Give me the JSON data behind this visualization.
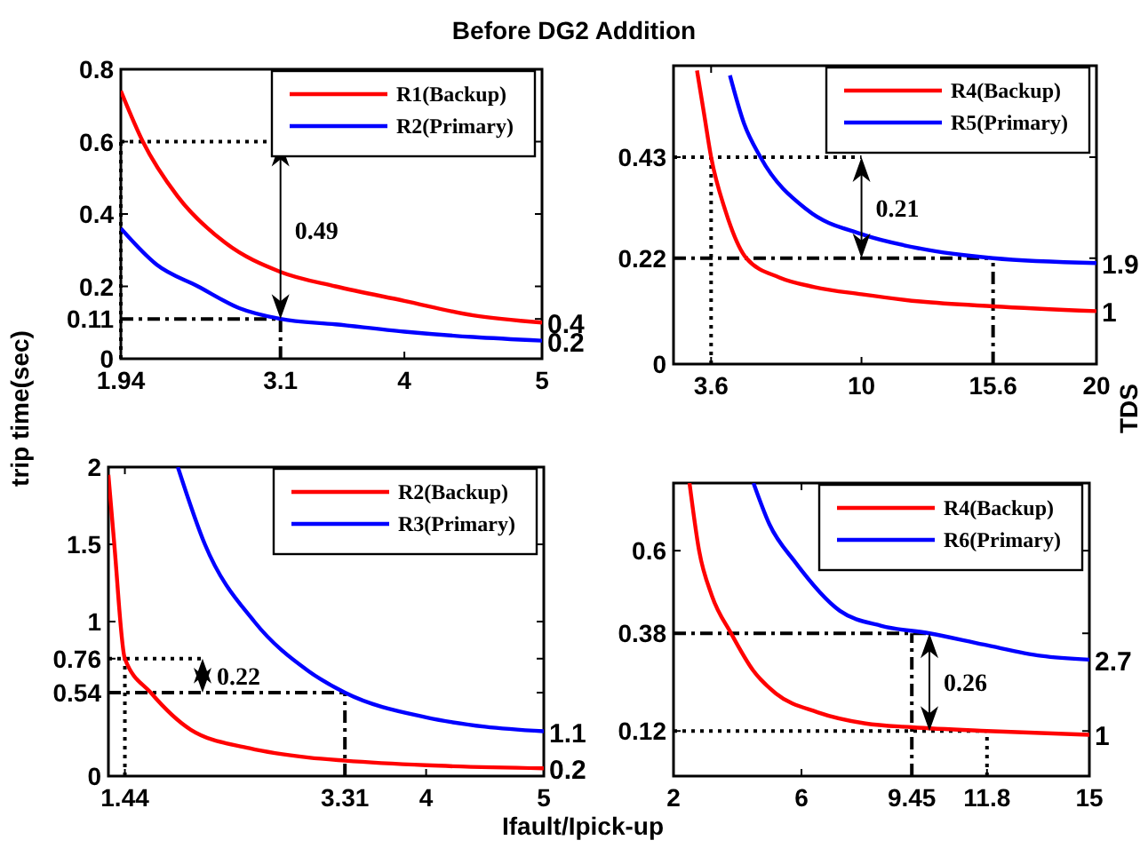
{
  "chart_data": [
    {
      "type": "line",
      "title": "Before DG2 Addition",
      "ylabel": "trip time(sec)",
      "xlim": [
        1.94,
        5
      ],
      "xticks": [
        1.94,
        3.1,
        4,
        5
      ],
      "ylim": [
        0,
        0.8
      ],
      "yticks": [
        0,
        0.11,
        0.2,
        0.4,
        0.6,
        0.8
      ],
      "legend": "top right",
      "grid": false,
      "series": [
        {
          "name": "R1(Backup)",
          "color": "#ff0000",
          "x": [
            1.94,
            2.1,
            2.35,
            2.7,
            3.1,
            3.5,
            4,
            4.5,
            5
          ],
          "values": [
            0.74,
            0.6,
            0.45,
            0.32,
            0.24,
            0.2,
            0.16,
            0.12,
            0.1
          ]
        },
        {
          "name": "R2(Primary)",
          "color": "#0000ff",
          "x": [
            1.94,
            2.2,
            2.5,
            2.8,
            3.1,
            3.5,
            4,
            4.5,
            5
          ],
          "values": [
            0.36,
            0.26,
            0.2,
            0.14,
            0.11,
            0.095,
            0.075,
            0.06,
            0.05
          ]
        }
      ],
      "ref_lines": [
        {
          "axis": "y",
          "value": 0.6,
          "line_style": "dotted"
        },
        {
          "axis": "x",
          "value": 1.94,
          "line_style": "dotted"
        },
        {
          "axis": "y",
          "value": 0.11,
          "line_style": "dashed"
        },
        {
          "axis": "x",
          "value": 3.1,
          "line_style": "dashed"
        }
      ],
      "annotations": [
        {
          "text": "0.49",
          "x": 3.1,
          "y": 0.11
        },
        {
          "text": "0.4",
          "x": 5,
          "y": 0.1
        },
        {
          "text": "0.2",
          "x": 5,
          "y": 0.05
        }
      ]
    },
    {
      "type": "line",
      "y2label": "TDS",
      "xlim": [
        2,
        20
      ],
      "xticks": [
        3.6,
        10,
        15.6,
        20
      ],
      "ylim": [
        0,
        0.62
      ],
      "yticks": [
        0,
        0.22,
        0.43
      ],
      "legend": "top right",
      "grid": false,
      "series": [
        {
          "name": "R4(Backup)",
          "color": "#ff0000",
          "x": [
            3.0,
            3.3,
            3.6,
            4.2,
            5.1,
            6.5,
            8,
            10,
            12.5,
            15.6,
            20
          ],
          "values": [
            0.61,
            0.52,
            0.43,
            0.32,
            0.22,
            0.18,
            0.16,
            0.145,
            0.13,
            0.12,
            0.11
          ]
        },
        {
          "name": "R5(Primary)",
          "color": "#0000ff",
          "x": [
            4.4,
            5,
            5.7,
            7.7,
            10,
            12.5,
            15.6,
            20
          ],
          "values": [
            0.6,
            0.5,
            0.43,
            0.32,
            0.27,
            0.24,
            0.22,
            0.21
          ]
        }
      ],
      "ref_lines": [
        {
          "axis": "y",
          "value": 0.43,
          "line_style": "dotted"
        },
        {
          "axis": "x",
          "value": 3.6,
          "line_style": "dotted"
        },
        {
          "axis": "y",
          "value": 0.22,
          "line_style": "dashed"
        },
        {
          "axis": "x",
          "value": 15.6,
          "line_style": "dashed"
        }
      ],
      "annotations": [
        {
          "text": "0.21",
          "x": 10,
          "y": 0.43
        },
        {
          "text": "1.9",
          "x": 20,
          "y": 0.21
        },
        {
          "text": "1",
          "x": 20,
          "y": 0.11
        }
      ]
    },
    {
      "type": "line",
      "xlabel": "Ifault/Ipick-up",
      "xlim": [
        1.3,
        5
      ],
      "xticks": [
        1.44,
        3.31,
        4,
        5
      ],
      "ylim": [
        0,
        2
      ],
      "yticks": [
        0,
        0.54,
        0.76,
        1,
        1.5,
        2
      ],
      "legend": "top right",
      "grid": false,
      "series": [
        {
          "name": "R2(Backup)",
          "color": "#ff0000",
          "x": [
            1.3,
            1.35,
            1.44,
            1.66,
            2.0,
            2.5,
            3,
            3.31,
            4,
            5
          ],
          "values": [
            1.95,
            1.5,
            0.76,
            0.54,
            0.3,
            0.18,
            0.12,
            0.1,
            0.07,
            0.05
          ]
        },
        {
          "name": "R3(Primary)",
          "color": "#0000ff",
          "x": [
            1.89,
            2.12,
            2.54,
            3.0,
            3.31,
            4,
            4.5,
            5
          ],
          "values": [
            2.0,
            1.5,
            1.0,
            0.68,
            0.54,
            0.38,
            0.32,
            0.29
          ]
        }
      ],
      "ref_lines": [
        {
          "axis": "y",
          "value": 0.76,
          "line_style": "dotted"
        },
        {
          "axis": "x",
          "value": 1.44,
          "line_style": "dotted"
        },
        {
          "axis": "y",
          "value": 0.54,
          "line_style": "dashed"
        },
        {
          "axis": "x",
          "value": 3.31,
          "line_style": "dashed"
        }
      ],
      "annotations": [
        {
          "text": "0.22",
          "x": 2.1,
          "y": 0.76
        },
        {
          "text": "1.1",
          "x": 5,
          "y": 0.29
        },
        {
          "text": "0.2",
          "x": 5,
          "y": 0.05
        }
      ]
    },
    {
      "type": "line",
      "xlim": [
        2,
        15
      ],
      "xticks": [
        2,
        6,
        9.45,
        11.8,
        15
      ],
      "ylim": [
        0,
        0.78
      ],
      "yticks": [
        0.12,
        0.38,
        0.6
      ],
      "legend": "top right",
      "grid": false,
      "series": [
        {
          "name": "R4(Backup)",
          "color": "#ff0000",
          "x": [
            2.5,
            2.8,
            3.2,
            3.8,
            4.5,
            5.2,
            6.5,
            8,
            9.45,
            11.8,
            15
          ],
          "values": [
            0.78,
            0.6,
            0.48,
            0.38,
            0.28,
            0.22,
            0.17,
            0.14,
            0.13,
            0.12,
            0.11
          ]
        },
        {
          "name": "R6(Primary)",
          "color": "#0000ff",
          "x": [
            4.5,
            5,
            5.8,
            7.2,
            8.5,
            10,
            11.7,
            13.5,
            15
          ],
          "values": [
            0.78,
            0.67,
            0.57,
            0.44,
            0.4,
            0.38,
            0.35,
            0.32,
            0.31
          ]
        }
      ],
      "ref_lines": [
        {
          "axis": "y",
          "value": 0.38,
          "line_style": "dashed"
        },
        {
          "axis": "x",
          "value": 9.45,
          "line_style": "dashed"
        },
        {
          "axis": "y",
          "value": 0.12,
          "line_style": "dotted"
        },
        {
          "axis": "x",
          "value": 11.8,
          "line_style": "dotted"
        }
      ],
      "annotations": [
        {
          "text": "0.26",
          "x": 10,
          "y": 0.38
        },
        {
          "text": "2.7",
          "x": 15,
          "y": 0.31
        },
        {
          "text": "1",
          "x": 15,
          "y": 0.11
        }
      ]
    }
  ]
}
